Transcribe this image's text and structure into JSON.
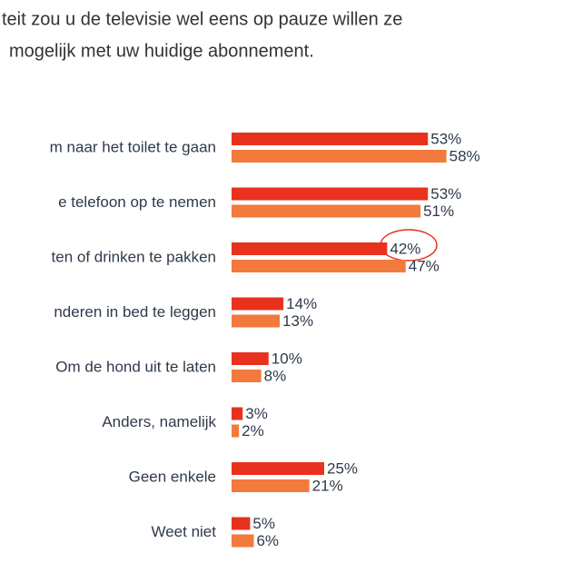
{
  "chart_data": {
    "type": "hbar",
    "title_lines": [
      "teit zou u de televisie wel eens op pauze willen ze",
      "mogelijk met uw huidige abonnement."
    ],
    "categories": [
      "m naar het toilet te gaan",
      "e telefoon op te nemen",
      "ten of drinken te pakken",
      "nderen in bed te leggen",
      "Om de hond uit te laten",
      "Anders, namelijk",
      "Geen enkele",
      "Weet niet"
    ],
    "series": [
      {
        "color": "#e8321e",
        "values": [
          53,
          53,
          42,
          14,
          10,
          3,
          25,
          5
        ],
        "value_labels": [
          "53%",
          "53%",
          "42%",
          "14%",
          "10%",
          "3%",
          "25%",
          "5%"
        ]
      },
      {
        "color": "#f27a3c",
        "values": [
          58,
          51,
          47,
          13,
          8,
          2,
          21,
          6
        ],
        "value_labels": [
          "58%",
          "51%",
          "47%",
          "13%",
          "8%",
          "2%",
          "21%",
          "6%"
        ]
      }
    ]
  }
}
